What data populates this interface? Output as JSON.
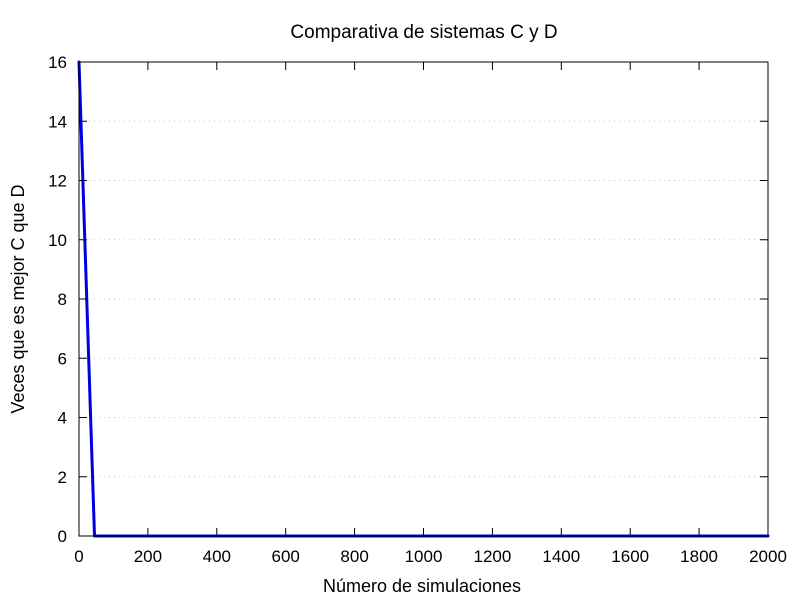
{
  "chart_data": {
    "type": "line",
    "title": "Comparativa de sistemas C y D",
    "xlabel": "Número de simulaciones",
    "ylabel": "Veces que es mejor C que D",
    "xlim": [
      0,
      2000
    ],
    "ylim": [
      0,
      16
    ],
    "x_ticks": [
      0,
      200,
      400,
      600,
      800,
      1000,
      1200,
      1400,
      1600,
      1800,
      2000
    ],
    "y_ticks": [
      0,
      2,
      4,
      6,
      8,
      10,
      12,
      14,
      16
    ],
    "grid": "horizontal-dotted",
    "series": [
      {
        "color": "#0000e0",
        "x": [
          0,
          45,
          100,
          200,
          400,
          600,
          800,
          1000,
          1200,
          1400,
          1600,
          1800,
          2000
        ],
        "y": [
          16,
          0,
          0,
          0,
          0,
          0,
          0,
          0,
          0,
          0,
          0,
          0,
          0
        ]
      }
    ]
  }
}
